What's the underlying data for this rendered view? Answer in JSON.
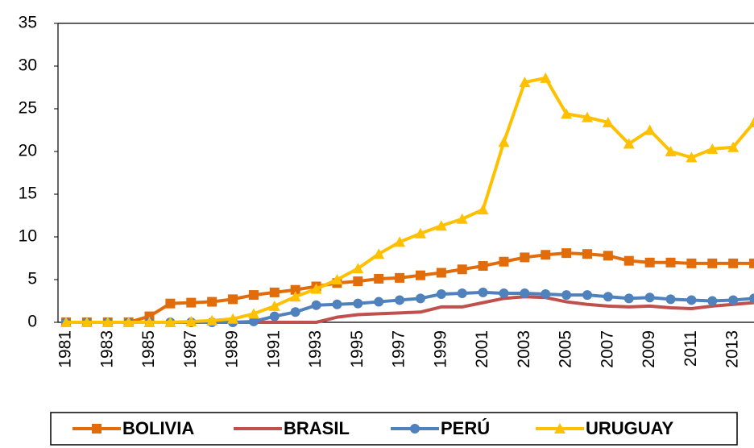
{
  "chart_data": {
    "type": "line",
    "categories": [
      "1981",
      null,
      "1983",
      null,
      "1985",
      null,
      "1987",
      null,
      "1989",
      null,
      "1991",
      null,
      "1993",
      null,
      "1995",
      null,
      "1997",
      null,
      "1999",
      null,
      "2001",
      null,
      "2003",
      null,
      "2005",
      null,
      "2007",
      null,
      "2009",
      null,
      "2011",
      null,
      "2013",
      null
    ],
    "series": [
      {
        "name": "BOLIVIA",
        "color": "#e36c0a",
        "marker": "square",
        "values": [
          0,
          0,
          0,
          0,
          0.7,
          2.2,
          2.3,
          2.4,
          2.7,
          3.2,
          3.5,
          3.8,
          4.2,
          4.6,
          4.8,
          5.1,
          5.2,
          5.5,
          5.8,
          6.2,
          6.6,
          7.1,
          7.6,
          7.9,
          8.1,
          8.0,
          7.8,
          7.2,
          7.0,
          7.0,
          6.9,
          6.9,
          6.9,
          6.9
        ]
      },
      {
        "name": "BRASIL",
        "color": "#c0504d",
        "marker": "none",
        "values": [
          0,
          0,
          0,
          0,
          0,
          0,
          0,
          0,
          0,
          0,
          0,
          0,
          0,
          0.6,
          0.9,
          1.0,
          1.1,
          1.2,
          1.8,
          1.8,
          2.3,
          2.8,
          3.0,
          2.9,
          2.4,
          2.1,
          1.9,
          1.8,
          1.9,
          1.7,
          1.6,
          1.9,
          2.1,
          2.3
        ]
      },
      {
        "name": "PERÚ",
        "color": "#4f81bd",
        "marker": "circle",
        "values": [
          0,
          0,
          0,
          0,
          0,
          0,
          0,
          0,
          0,
          0.1,
          0.7,
          1.2,
          2.0,
          2.1,
          2.2,
          2.4,
          2.6,
          2.8,
          3.3,
          3.4,
          3.5,
          3.4,
          3.4,
          3.3,
          3.2,
          3.2,
          3.0,
          2.8,
          2.9,
          2.7,
          2.6,
          2.5,
          2.6,
          2.8
        ]
      },
      {
        "name": "URUGUAY",
        "color": "#ffc000",
        "marker": "triangle",
        "values": [
          0,
          0,
          0,
          0,
          0,
          0,
          0.1,
          0.2,
          0.4,
          1.0,
          1.9,
          3.0,
          3.9,
          5.0,
          6.3,
          8.0,
          9.4,
          10.4,
          11.3,
          12.1,
          13.2,
          21.1,
          28.1,
          28.6,
          24.4,
          24.0,
          23.4,
          20.9,
          22.5,
          20.0,
          19.3,
          20.3,
          20.5,
          23.4
        ]
      }
    ],
    "ylim": [
      0,
      35
    ],
    "yticks": [
      0,
      5,
      10,
      15,
      20,
      25,
      30,
      35
    ],
    "legend": "bottom"
  }
}
